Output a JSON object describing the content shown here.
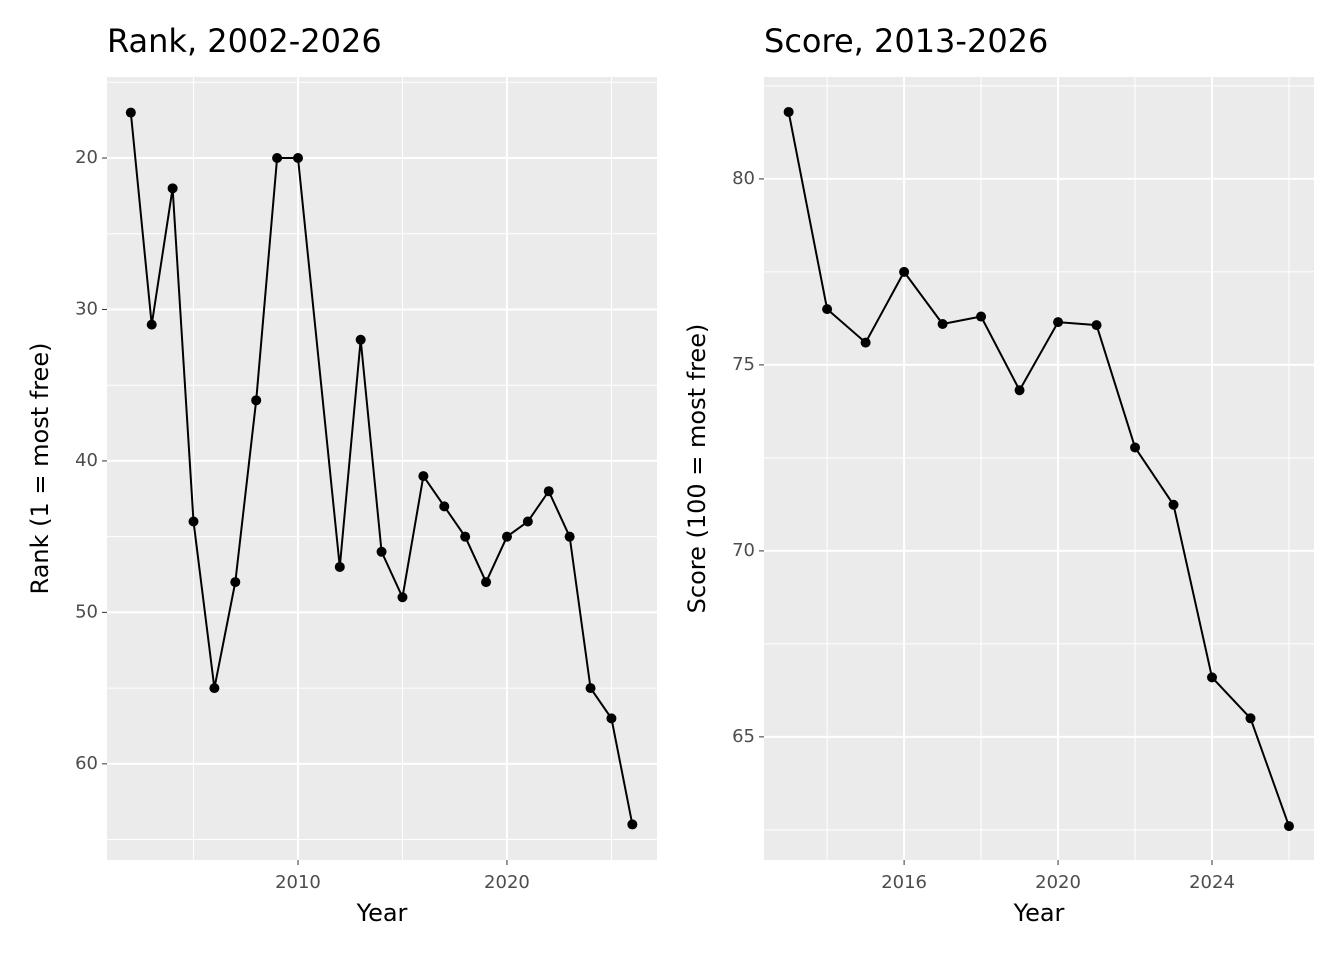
{
  "chart_data": [
    {
      "type": "line",
      "title": "Rank, 2002-2026",
      "x_label": "Year",
      "y_label": "Rank (1 = most free)",
      "x": [
        2002,
        2003,
        2004,
        2005,
        2006,
        2007,
        2008,
        2009,
        2010,
        2012,
        2013,
        2014,
        2015,
        2016,
        2017,
        2018,
        2019,
        2020,
        2021,
        2022,
        2023,
        2024,
        2025,
        2026
      ],
      "values": [
        17,
        31,
        22,
        44,
        55,
        48,
        36,
        20,
        20,
        47,
        32,
        46,
        49,
        41,
        43,
        45,
        48,
        45,
        44,
        42,
        45,
        55,
        57,
        64
      ],
      "color": "#000000",
      "xlim": [
        2000.86,
        2027.18
      ],
      "xticks": [
        2010,
        2020
      ],
      "ylim": [
        14.65,
        66.35
      ],
      "yticks": [
        20,
        30,
        40,
        50,
        60
      ],
      "y_reversed": true,
      "grid": true
    },
    {
      "type": "line",
      "title": "Score, 2013-2026",
      "x_label": "Year",
      "y_label": "Score (100 = most free)",
      "x": [
        2013,
        2014,
        2015,
        2016,
        2017,
        2018,
        2019,
        2020,
        2021,
        2022,
        2023,
        2024,
        2025,
        2026
      ],
      "values": [
        81.8,
        76.5,
        75.6,
        77.5,
        76.1,
        76.3,
        74.32,
        76.15,
        76.07,
        72.78,
        71.24,
        66.6,
        65.5,
        62.6
      ],
      "color": "#000000",
      "xlim": [
        2012.36,
        2026.65
      ],
      "xticks": [
        2016,
        2020,
        2024
      ],
      "ylim": [
        61.69,
        82.74
      ],
      "yticks": [
        65,
        70,
        75,
        80
      ],
      "y_reversed": false,
      "grid": true
    }
  ]
}
